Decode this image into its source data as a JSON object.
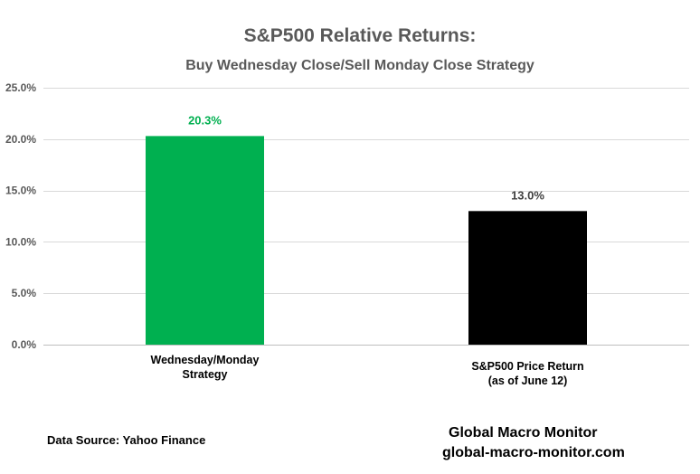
{
  "chart_data": {
    "type": "bar",
    "title": "S&P500 Relative Returns:",
    "subtitle": "Buy Wednesday  Close/Sell  Monday  Close Strategy",
    "categories": [
      [
        "Wednesday/Monday",
        "Strategy"
      ],
      [
        "S&P500 Price Return",
        "(as of June 12)"
      ]
    ],
    "values": [
      20.3,
      13.0
    ],
    "value_labels": [
      "20.3%",
      "13.0%"
    ],
    "bar_colors": [
      "#00b050",
      "#000000"
    ],
    "label_colors": [
      "#00b050",
      "#404040"
    ],
    "ylim": [
      0,
      25
    ],
    "yticks": [
      0,
      5,
      10,
      15,
      20,
      25
    ],
    "ytick_labels": [
      "0.0%",
      "5.0%",
      "10.0%",
      "15.0%",
      "20.0%",
      "25.0%"
    ],
    "grid": true,
    "xlabel": "",
    "ylabel": ""
  },
  "footer": {
    "source": "Data Source: Yahoo Finance",
    "brand": "Global Macro Monitor",
    "url": "global-macro-monitor.com"
  },
  "colors": {
    "gridline": "#d9d9d9",
    "axis": "#bfbfbf",
    "title": "#595959"
  }
}
